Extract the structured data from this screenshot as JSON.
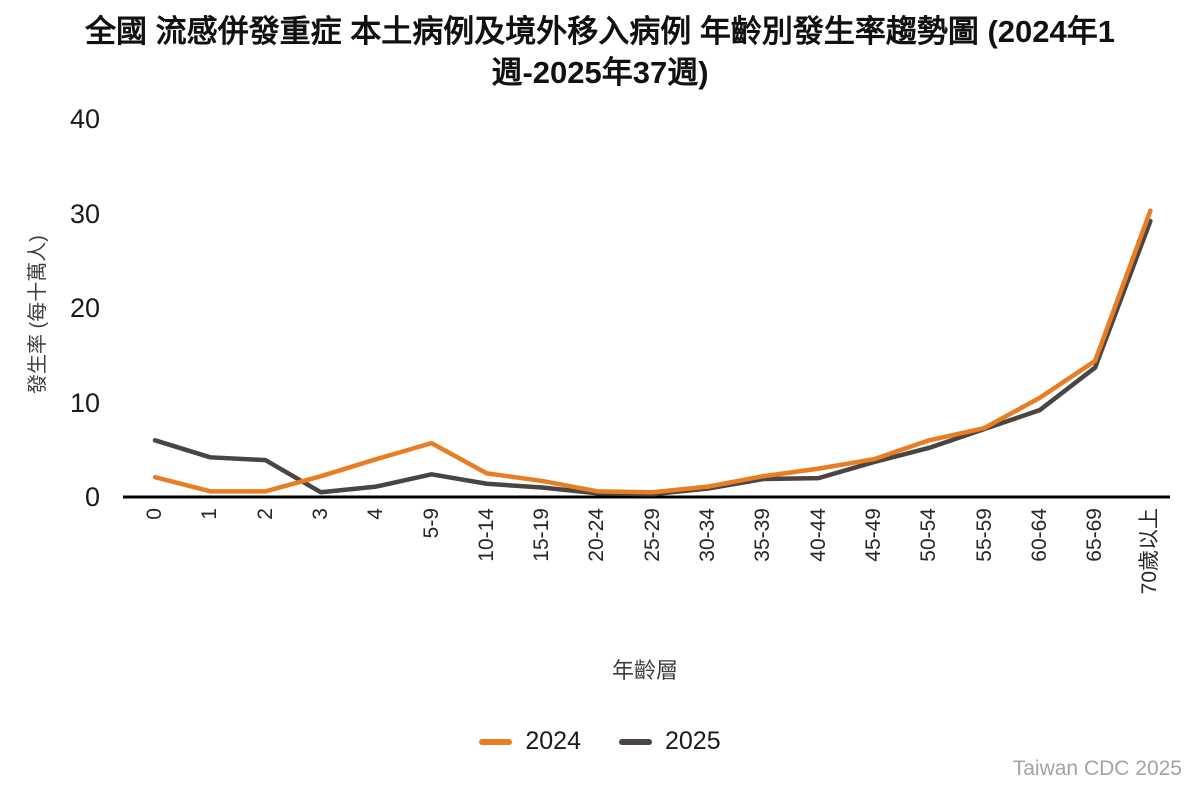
{
  "title": "全國 流感併發重症 本土病例及境外移入病例 年齡別發生率趨勢圖 (2024年1週-2025年37週)",
  "footer": "Taiwan CDC 2025",
  "chart_data": {
    "type": "line",
    "title": "全國 流感併發重症 本土病例及境外移入病例 年齡別發生率趨勢圖 (2024年1週-2025年37週)",
    "xlabel": "年齡層",
    "ylabel": "發生率 (每十萬人)",
    "ylim": [
      0,
      40
    ],
    "yticks": [
      0,
      10,
      20,
      30,
      40
    ],
    "grid": false,
    "legend_position": "bottom",
    "categories": [
      "0",
      "1",
      "2",
      "3",
      "4",
      "5-9",
      "10-14",
      "15-19",
      "20-24",
      "25-29",
      "30-34",
      "35-39",
      "40-44",
      "45-49",
      "50-54",
      "55-59",
      "60-64",
      "65-69",
      "70歲以上"
    ],
    "series": [
      {
        "name": "2024",
        "color": "#E87D23",
        "values": [
          2.1,
          0.6,
          0.6,
          2.2,
          4.0,
          5.7,
          2.5,
          1.7,
          0.6,
          0.5,
          1.1,
          2.2,
          3.0,
          4.0,
          6.0,
          7.3,
          10.5,
          14.4,
          30.3
        ]
      },
      {
        "name": "2025",
        "color": "#4A4442",
        "values": [
          6.0,
          4.2,
          3.9,
          0.5,
          1.1,
          2.4,
          1.4,
          1.0,
          0.4,
          0.3,
          0.9,
          1.9,
          2.0,
          3.7,
          5.2,
          7.2,
          9.2,
          13.7,
          29.2
        ]
      }
    ]
  }
}
